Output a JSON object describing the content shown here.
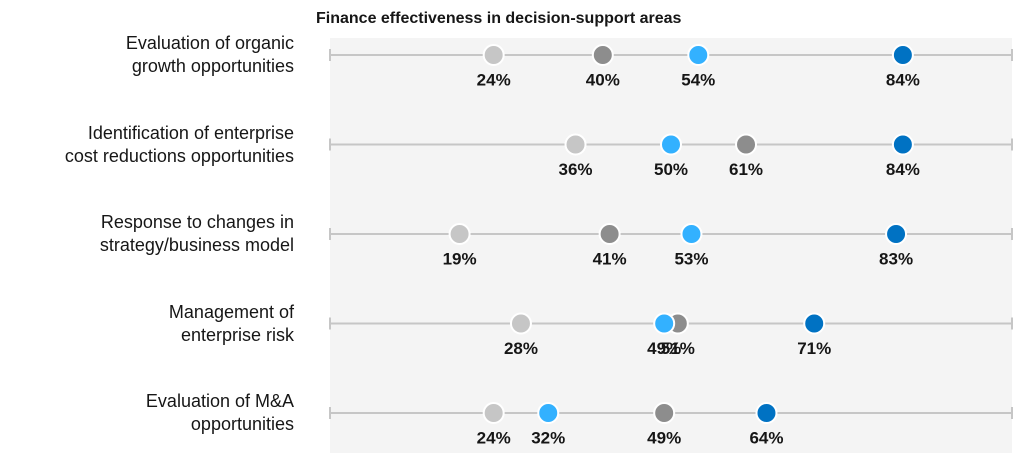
{
  "chart_data": {
    "type": "dot",
    "title": "Finance effectiveness in decision-support areas",
    "categories": [
      "Evaluation of organic\ngrowth opportunities",
      "Identification of enterprise\ncost reductions opportunities",
      "Response to changes in\nstrategy/business model",
      "Management of\nenterprise risk",
      "Evaluation of M&A\nopportunities"
    ],
    "xlim": [
      0,
      100
    ],
    "series": [
      {
        "color": "#c6c6c6",
        "values": [
          24,
          36,
          19,
          28,
          24
        ],
        "value_labels": [
          "24%",
          "36%",
          "19%",
          "28%",
          "24%"
        ]
      },
      {
        "color": "#8d8d8d",
        "values": [
          40,
          61,
          41,
          51,
          49
        ],
        "value_labels": [
          "40%",
          "61%",
          "41%",
          "51%",
          "49%"
        ]
      },
      {
        "color": "#33b1ff",
        "values": [
          54,
          50,
          53,
          49,
          32
        ],
        "value_labels": [
          "54%",
          "50%",
          "53%",
          "49%",
          "32%"
        ]
      },
      {
        "color": "#0072c3",
        "values": [
          84,
          84,
          83,
          71,
          64
        ],
        "value_labels": [
          "84%",
          "84%",
          "83%",
          "71%",
          "64%"
        ]
      }
    ]
  }
}
